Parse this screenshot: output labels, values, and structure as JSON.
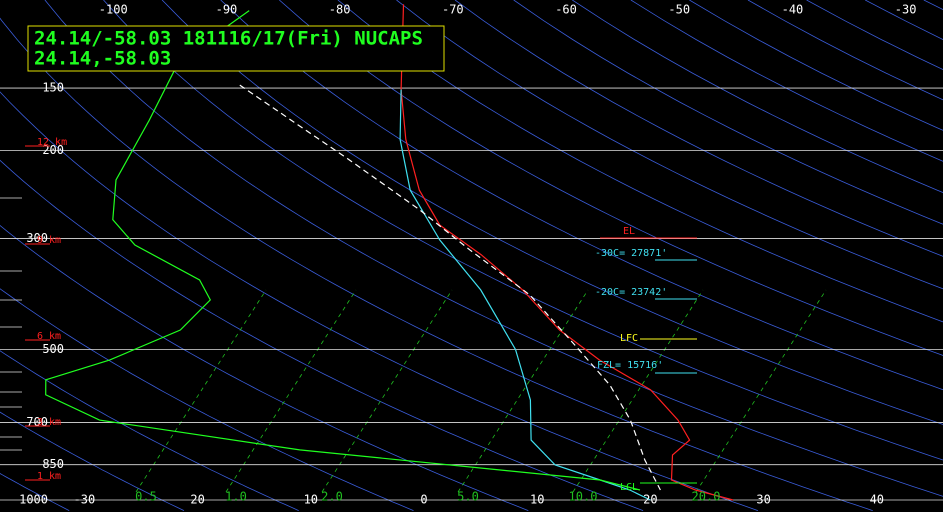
{
  "chart_data": {
    "type": "skewt",
    "title": "24.14/-58.03 181116/17(Fri) NUCAPS",
    "subtitle": "24.14,-58.03",
    "ylim": [
      100,
      1000
    ],
    "yticks": [
      150,
      200,
      300,
      500,
      700,
      850,
      1000
    ],
    "log_y": true,
    "grid": true,
    "top_ticks": [
      -100,
      -90,
      -80,
      -70,
      -60,
      -50,
      -40,
      -30
    ],
    "bottom_ticks": [
      -30,
      {
        "value": -20,
        "label": "20"
      },
      {
        "value": -10,
        "label": "10"
      },
      0,
      10,
      20,
      30,
      40
    ],
    "height_labels": [
      "12 km",
      "9 km",
      "6 km",
      "3 km",
      "1 km"
    ],
    "mixing_ratio_labels": [
      "0.5",
      "1.0",
      "2.0",
      "5.0",
      "10.0",
      "20.0"
    ],
    "annotations": [
      {
        "text": "EL",
        "color": "#ff2020"
      },
      {
        "text": "-30C= 27871'",
        "color": "#40e0f0"
      },
      {
        "text": "-20C= 23742'",
        "color": "#40e0f0"
      },
      {
        "text": "LFC",
        "color": "#ffff20"
      },
      {
        "text": "FZL= 15716'",
        "color": "#40e0f0"
      },
      {
        "text": "LCL",
        "color": "#20ff20"
      }
    ],
    "series": [
      {
        "color": "#ff2020",
        "dash": false,
        "x": [
          -75.2,
          -62.8,
          -55.0,
          -46.3,
          -39.3,
          -31.3,
          -22.4,
          -13.2,
          -5.2,
          3.7,
          10.6,
          14.6,
          15.3,
          18.9,
          22.5,
          27.3
        ],
        "values": [
          102,
          151,
          190,
          240,
          282,
          323,
          380,
          457,
          525,
          602,
          692,
          759,
          813,
          912,
          955,
          1000
        ]
      },
      {
        "color": "#40e0f0",
        "dash": false,
        "x": [
          -62.8,
          -55.5,
          -47.1,
          -37.1,
          -26.1,
          -14.2,
          -5.4,
          0.6,
          6.4,
          12.6,
          16.7,
          20.0
        ],
        "values": [
          151,
          190,
          240,
          302,
          380,
          500,
          631,
          759,
          851,
          912,
          955,
          1000
        ]
      },
      {
        "color": "#20ff20",
        "dash": false,
        "x": [
          -87.9,
          -86.7,
          -80.5,
          -74.6,
          -69.0,
          -63.3,
          -52.4,
          -48.5,
          -46.7,
          -48.5,
          -51.2,
          -49.0,
          -40.5,
          -18.4,
          2.3,
          12.6,
          17.6
        ],
        "values": [
          105,
          132,
          174,
          229,
          275,
          309,
          363,
          398,
          457,
          525,
          575,
          616,
          692,
          794,
          871,
          912,
          955
        ]
      },
      {
        "color": "#ffffff",
        "dash": true,
        "x": [
          -77.7,
          -56.9,
          -43.3,
          -33.0,
          -21.0,
          -9.6,
          -0.6,
          6.4,
          13.6,
          19.4
        ],
        "values": [
          148,
          209,
          263,
          316,
          389,
          490,
          589,
          692,
          832,
          955
        ]
      }
    ]
  }
}
